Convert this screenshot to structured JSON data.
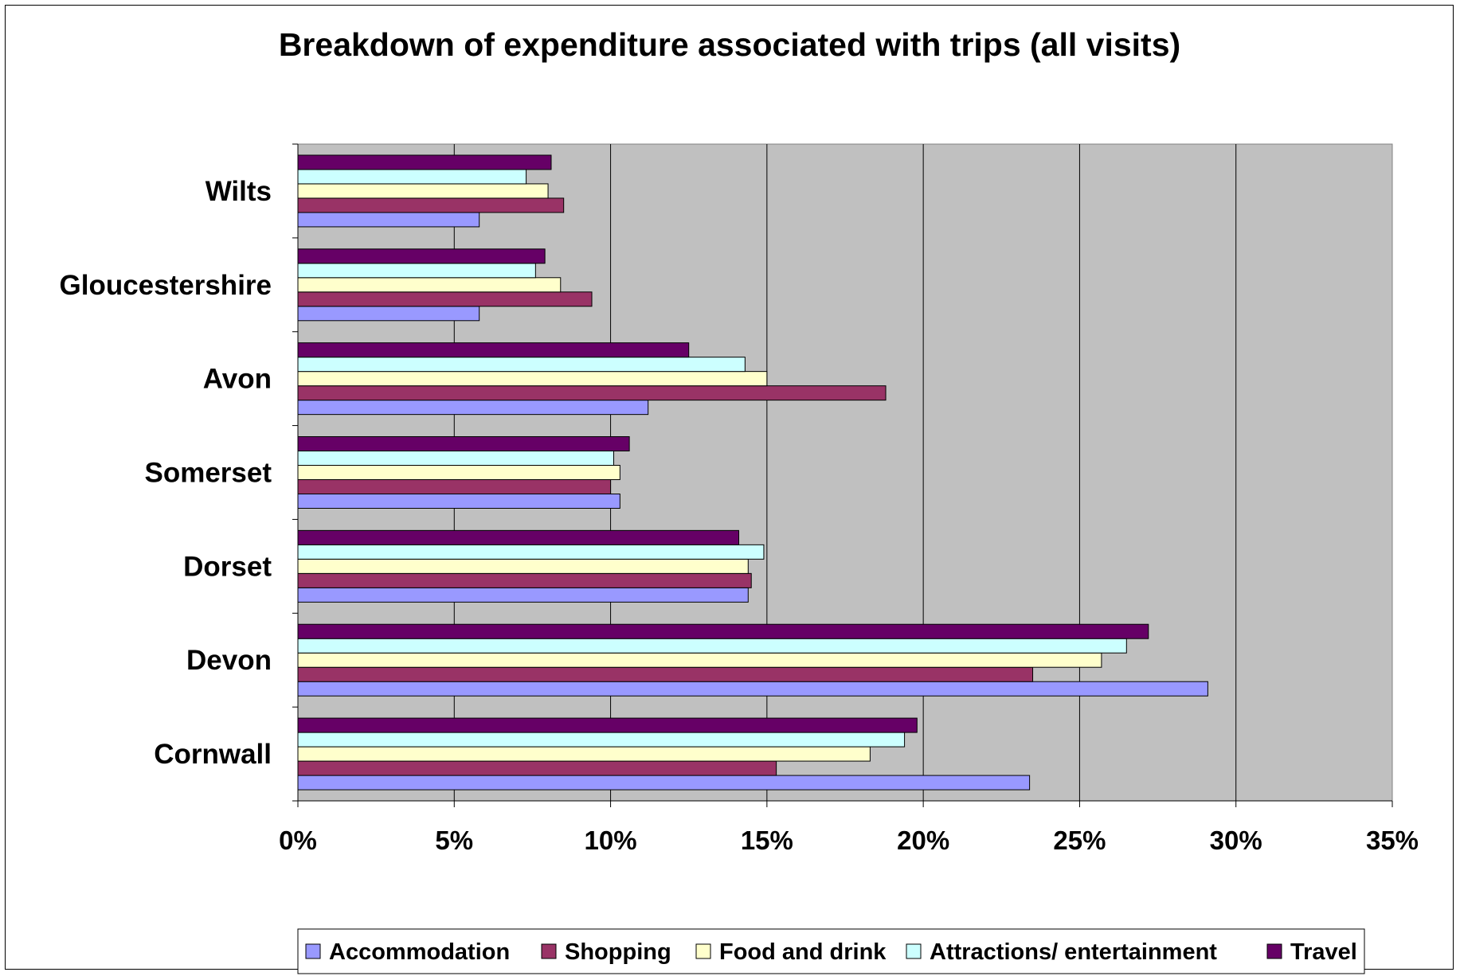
{
  "chart_data": {
    "type": "bar",
    "orientation": "horizontal",
    "title": "Breakdown of expenditure associated with trips (all visits)",
    "categories": [
      "Cornwall",
      "Devon",
      "Dorset",
      "Somerset",
      "Avon",
      "Gloucestershire",
      "Wilts"
    ],
    "series": [
      {
        "name": "Accommodation",
        "color": "#9999ff",
        "values": [
          23.4,
          29.1,
          14.4,
          10.3,
          11.2,
          5.8,
          5.8
        ]
      },
      {
        "name": "Shopping",
        "color": "#993366",
        "values": [
          15.3,
          23.5,
          14.5,
          10.0,
          18.8,
          9.4,
          8.5
        ]
      },
      {
        "name": "Food and drink",
        "color": "#ffffcc",
        "values": [
          18.3,
          25.7,
          14.4,
          10.3,
          15.0,
          8.4,
          8.0
        ]
      },
      {
        "name": "Attractions/ entertainment",
        "color": "#ccffff",
        "values": [
          19.4,
          26.5,
          14.9,
          10.1,
          14.3,
          7.6,
          7.3
        ]
      },
      {
        "name": "Travel",
        "color": "#660066",
        "values": [
          19.8,
          27.2,
          14.1,
          10.6,
          12.5,
          7.9,
          8.1
        ]
      }
    ],
    "xlim": [
      0,
      35
    ],
    "x_ticks": [
      "0%",
      "5%",
      "10%",
      "15%",
      "20%",
      "25%",
      "30%",
      "35%"
    ],
    "grid": true,
    "plot_background": "#c0c0c0",
    "legend_position": "bottom"
  }
}
